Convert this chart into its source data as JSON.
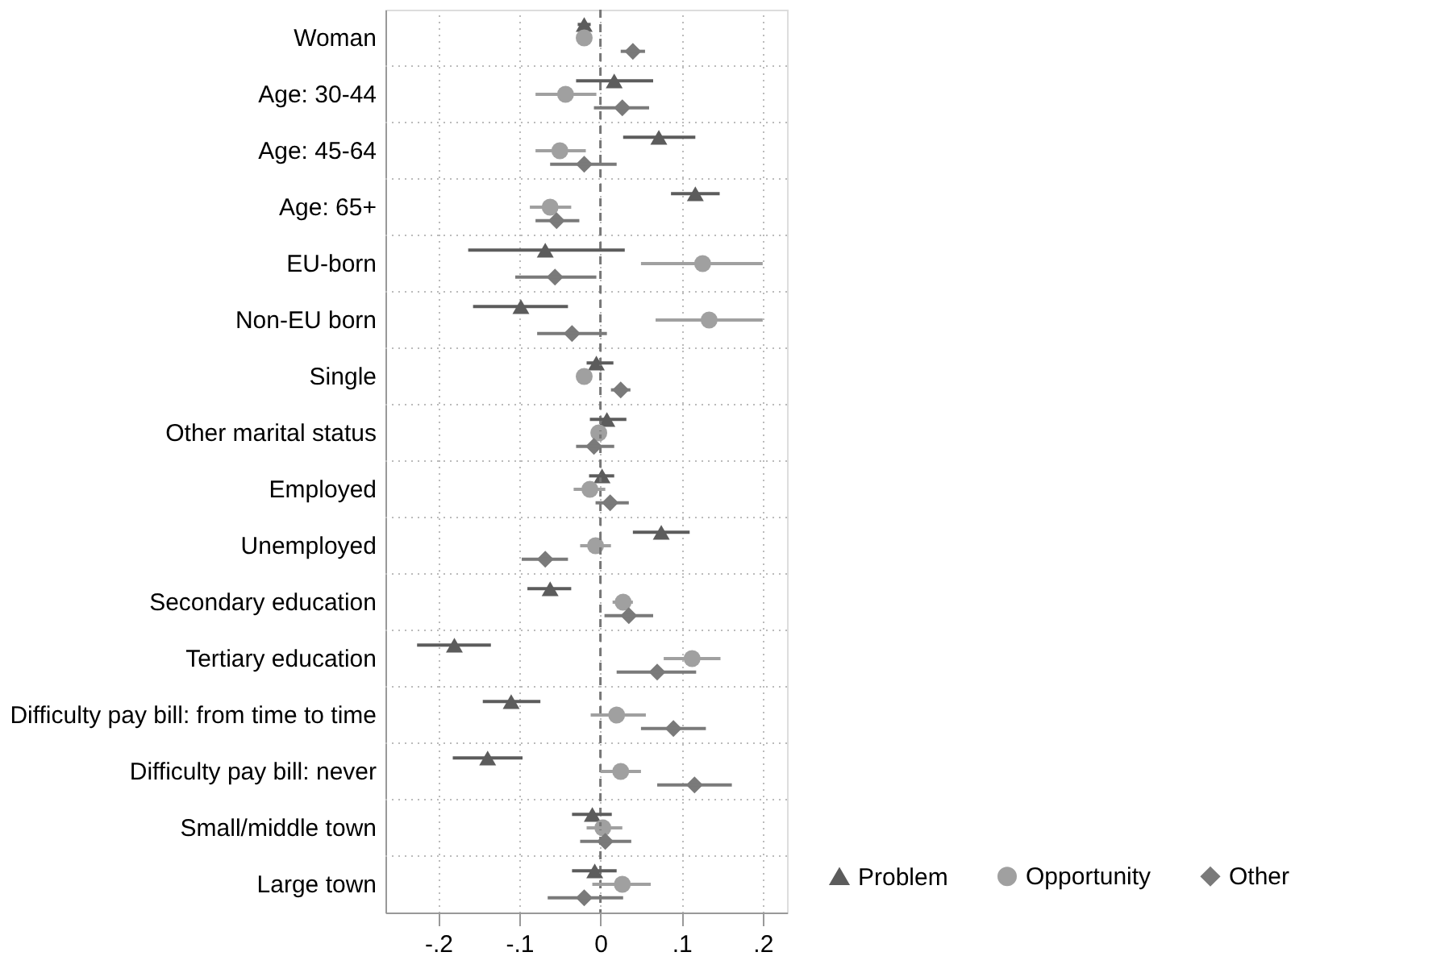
{
  "chart_data": {
    "type": "scatter",
    "orientation": "horizontal",
    "categories": [
      "Woman",
      "Age: 30-44",
      "Age: 45-64",
      "Age: 65+",
      "EU-born",
      "Non-EU born",
      "Single",
      "Other marital status",
      "Employed",
      "Unemployed",
      "Secondary education",
      "Tertiary education",
      "Difficulty pay bill: from time to time",
      "Difficulty pay bill: never",
      "Small/middle town",
      "Large town"
    ],
    "series": [
      {
        "name": "Problem",
        "color": "#5c5c5c",
        "marker": "triangle",
        "values": [
          -0.02,
          0.017,
          0.072,
          0.117,
          -0.068,
          -0.098,
          -0.005,
          0.008,
          0.002,
          0.075,
          -0.062,
          -0.18,
          -0.11,
          -0.139,
          -0.01,
          -0.007
        ],
        "errors": [
          [
            -0.028,
            -0.012
          ],
          [
            -0.03,
            0.065
          ],
          [
            0.028,
            0.117
          ],
          [
            0.087,
            0.147
          ],
          [
            -0.163,
            0.03
          ],
          [
            -0.157,
            -0.04
          ],
          [
            -0.017,
            0.016
          ],
          [
            -0.013,
            0.032
          ],
          [
            -0.014,
            0.017
          ],
          [
            0.04,
            0.11
          ],
          [
            -0.09,
            -0.036
          ],
          [
            -0.226,
            -0.135
          ],
          [
            -0.145,
            -0.074
          ],
          [
            -0.182,
            -0.096
          ],
          [
            -0.035,
            0.014
          ],
          [
            -0.035,
            0.02
          ]
        ]
      },
      {
        "name": "Opportunity",
        "color": "#a0a0a0",
        "marker": "circle",
        "values": [
          -0.02,
          -0.043,
          -0.05,
          -0.062,
          0.126,
          0.134,
          -0.02,
          -0.002,
          -0.013,
          -0.006,
          0.028,
          0.113,
          0.02,
          0.025,
          0.003,
          0.027
        ],
        "errors": [
          null,
          [
            -0.08,
            -0.005
          ],
          [
            -0.08,
            -0.018
          ],
          [
            -0.087,
            -0.036
          ],
          [
            0.05,
            0.2
          ],
          [
            0.068,
            0.2
          ],
          [
            -0.025,
            -0.015
          ],
          [
            -0.01,
            0.006
          ],
          [
            -0.033,
            0.006
          ],
          [
            -0.025,
            0.013
          ],
          [
            0.015,
            0.04
          ],
          [
            0.078,
            0.148
          ],
          [
            -0.012,
            0.056
          ],
          [
            0,
            0.05
          ],
          [
            -0.017,
            0.027
          ],
          [
            -0.01,
            0.062
          ]
        ]
      },
      {
        "name": "Other",
        "color": "#7a7a7a",
        "marker": "diamond",
        "values": [
          0.04,
          0.027,
          -0.02,
          -0.054,
          -0.056,
          -0.035,
          0.025,
          -0.008,
          0.012,
          -0.068,
          0.035,
          0.07,
          0.09,
          0.116,
          0.006,
          -0.02
        ],
        "errors": [
          [
            0.025,
            0.055
          ],
          [
            -0.008,
            0.06
          ],
          [
            -0.062,
            0.02
          ],
          [
            -0.08,
            -0.026
          ],
          [
            -0.105,
            -0.005
          ],
          [
            -0.078,
            0.008
          ],
          [
            0.013,
            0.037
          ],
          [
            -0.03,
            0.017
          ],
          [
            -0.006,
            0.035
          ],
          [
            -0.097,
            -0.04
          ],
          [
            0.005,
            0.065
          ],
          [
            0.02,
            0.118
          ],
          [
            0.05,
            0.13
          ],
          [
            0.07,
            0.162
          ],
          [
            -0.025,
            0.038
          ],
          [
            -0.065,
            0.028
          ]
        ]
      }
    ],
    "xlim": [
      -0.265,
      0.23
    ],
    "xticks": [
      {
        "value": -0.2,
        "label": "-.2"
      },
      {
        "value": -0.1,
        "label": "-.1"
      },
      0,
      {
        "value": 0.1,
        "label": ".1"
      },
      {
        "value": 0.2,
        "label": ".2"
      }
    ],
    "ref_lines": [
      {
        "axis": "x",
        "value": 0,
        "color": "#777777",
        "line_style": "dashed"
      }
    ],
    "grid": true,
    "legend": "bottom right"
  }
}
